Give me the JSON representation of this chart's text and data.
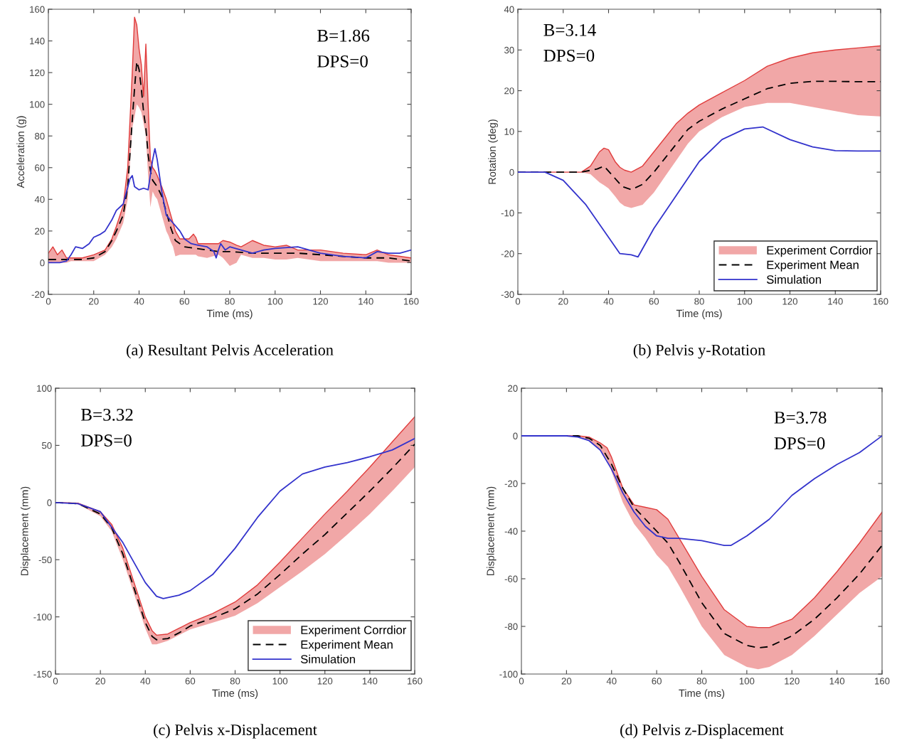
{
  "chart_data": [
    {
      "type": "line",
      "title": "(a) Resultant Pelvis Acceleration",
      "xlabel": "Time (ms)",
      "ylabel": "Acceleration (g)",
      "xlim": [
        0,
        160
      ],
      "xticks": [
        0,
        20,
        40,
        60,
        80,
        100,
        120,
        140,
        160
      ],
      "ylim": [
        -20,
        160
      ],
      "yticks": [
        -20,
        0,
        20,
        40,
        60,
        80,
        100,
        120,
        140,
        160
      ],
      "annotations": [
        "B=1.86",
        "DPS=0"
      ],
      "legend": false,
      "series": [
        {
          "type": "line",
          "color": "#e03c3c",
          "x": [
            0,
            2,
            4,
            6,
            8,
            10,
            15,
            20,
            25,
            28,
            30,
            33,
            35,
            37,
            38,
            39,
            40,
            41,
            42,
            43,
            44,
            45,
            46,
            47,
            48,
            50,
            52,
            53,
            54,
            55,
            56,
            58,
            60,
            62,
            64,
            65,
            66,
            70,
            75,
            77,
            80,
            83,
            85,
            90,
            95,
            100,
            105,
            110,
            120,
            130,
            140,
            145,
            150,
            160
          ],
          "values": [
            6,
            10,
            5,
            8,
            3,
            3,
            3,
            5,
            8,
            15,
            23,
            36,
            60,
            120,
            155,
            150,
            135,
            125,
            105,
            138,
            100,
            65,
            60,
            58,
            55,
            48,
            40,
            35,
            30,
            25,
            20,
            15,
            15,
            15,
            18,
            16,
            12,
            12,
            12,
            14,
            13,
            11,
            10,
            14,
            11,
            10,
            11,
            8,
            8,
            6,
            5,
            8,
            5,
            3
          ],
          "upper": [
            6,
            10,
            5,
            8,
            3,
            3,
            3,
            5,
            8,
            15,
            23,
            36,
            60,
            120,
            155,
            150,
            135,
            125,
            105,
            138,
            100,
            65,
            60,
            58,
            55,
            48,
            40,
            35,
            30,
            25,
            20,
            15,
            15,
            15,
            18,
            16,
            12,
            12,
            12,
            14,
            13,
            11,
            10,
            14,
            11,
            10,
            11,
            8,
            8,
            6,
            5,
            8,
            5,
            3
          ],
          "lower": [
            0,
            0,
            0,
            0,
            0,
            1,
            1,
            1,
            5,
            10,
            15,
            25,
            40,
            85,
            92,
            100,
            98,
            95,
            88,
            80,
            55,
            35,
            45,
            42,
            40,
            30,
            20,
            17,
            13,
            10,
            4,
            5,
            5,
            5,
            5,
            5,
            4,
            3,
            5,
            3,
            -2,
            0,
            5,
            3,
            3,
            2,
            2,
            3,
            1,
            1,
            1,
            1,
            0,
            0
          ]
        },
        {
          "color": "#000000",
          "line_style": "dashed",
          "x": [
            0,
            5,
            10,
            15,
            20,
            25,
            28,
            30,
            33,
            35,
            37,
            38,
            39,
            40,
            41,
            42,
            43,
            44,
            45,
            46,
            48,
            50,
            52,
            54,
            56,
            58,
            60,
            65,
            70,
            75,
            80,
            90,
            100,
            110,
            120,
            130,
            140,
            150,
            160
          ],
          "values": [
            2,
            2,
            2,
            2,
            3,
            7,
            14,
            20,
            30,
            48,
            90,
            110,
            127,
            122,
            110,
            95,
            85,
            68,
            58,
            52,
            48,
            42,
            32,
            22,
            14,
            12,
            10,
            9,
            8,
            7,
            7,
            6,
            6,
            6,
            5,
            4,
            3,
            3,
            1
          ]
        },
        {
          "color": "#3333cc",
          "line_style": "solid",
          "x": [
            0,
            5,
            8,
            10,
            12,
            15,
            18,
            20,
            23,
            25,
            28,
            30,
            33,
            36,
            37,
            38,
            40,
            42,
            44,
            46,
            47,
            48,
            50,
            52,
            55,
            58,
            60,
            63,
            66,
            70,
            73,
            74,
            75,
            76,
            78,
            80,
            85,
            90,
            95,
            100,
            110,
            115,
            120,
            130,
            140,
            145,
            150,
            155,
            160
          ],
          "values": [
            0,
            0,
            1,
            5,
            10,
            9,
            12,
            16,
            18,
            20,
            27,
            33,
            37,
            53,
            55,
            48,
            46,
            47,
            46,
            65,
            72,
            65,
            45,
            30,
            25,
            20,
            15,
            12,
            11,
            10,
            7,
            3,
            8,
            12,
            8,
            10,
            8,
            6,
            8,
            9,
            10,
            8,
            6,
            4,
            3,
            7,
            6,
            6,
            8
          ]
        }
      ]
    },
    {
      "type": "line",
      "title": "(b) Pelvis y-Rotation",
      "xlabel": "Time (ms)",
      "ylabel": "Rotation (deg)",
      "xlim": [
        0,
        160
      ],
      "xticks": [
        0,
        20,
        40,
        60,
        80,
        100,
        120,
        140,
        160
      ],
      "ylim": [
        -30,
        40
      ],
      "yticks": [
        -30,
        -20,
        -10,
        0,
        10,
        20,
        30,
        40
      ],
      "annotations": [
        "B=3.14",
        "DPS=0"
      ],
      "legend": "bottom right",
      "series": [
        {
          "type": "line",
          "name": "Experiment Corrdior",
          "color": "#e03c3c",
          "x": [
            0,
            10,
            20,
            28,
            32,
            36,
            38,
            40,
            43,
            45,
            47,
            50,
            55,
            60,
            65,
            70,
            75,
            80,
            90,
            100,
            110,
            120,
            130,
            140,
            150,
            160
          ],
          "values": [
            0,
            0,
            0,
            0,
            1.5,
            5,
            5.9,
            5.5,
            2.5,
            1.2,
            0.5,
            0,
            1.5,
            5,
            8.5,
            12,
            14.5,
            16.5,
            19.5,
            22.5,
            26,
            28,
            29.3,
            30,
            30.5,
            31
          ],
          "upper": [
            0,
            0,
            0,
            0,
            1.5,
            5,
            5.9,
            5.5,
            2.5,
            1.2,
            0.5,
            0,
            1.5,
            5,
            8.5,
            12,
            14.5,
            16.5,
            19.5,
            22.5,
            26,
            28,
            29.3,
            30,
            30.5,
            31
          ],
          "lower": [
            0,
            0,
            0,
            0,
            -0.5,
            -2.5,
            -3.2,
            -4,
            -6,
            -7.5,
            -8.3,
            -8.8,
            -8,
            -5,
            -1,
            3,
            7,
            10,
            13.5,
            16,
            17,
            17,
            16,
            15,
            14,
            13.7
          ]
        },
        {
          "name": "Experiment Mean",
          "color": "#000000",
          "line_style": "dashed",
          "x": [
            0,
            10,
            20,
            28,
            35,
            38,
            42,
            46,
            50,
            55,
            60,
            65,
            70,
            75,
            80,
            90,
            100,
            110,
            120,
            130,
            140,
            150,
            160
          ],
          "values": [
            0,
            0,
            0,
            0,
            0.8,
            1.5,
            -1,
            -3.5,
            -4.3,
            -3,
            0,
            3.5,
            7,
            10.5,
            12.5,
            15.5,
            18,
            20.5,
            21.8,
            22.3,
            22.3,
            22.2,
            22.2
          ]
        },
        {
          "name": "Simulation",
          "color": "#3333cc",
          "line_style": "solid",
          "x": [
            0,
            12,
            20,
            30,
            40,
            45,
            50,
            53,
            60,
            70,
            80,
            90,
            100,
            108,
            120,
            130,
            140,
            150,
            160
          ],
          "values": [
            0,
            0,
            -2,
            -8,
            -16,
            -20,
            -20.3,
            -20.8,
            -13.8,
            -5.6,
            2.6,
            8,
            10.6,
            11.1,
            8,
            6.2,
            5.3,
            5.2,
            5.2
          ]
        }
      ]
    },
    {
      "type": "line",
      "title": "(c) Pelvis x-Displacement",
      "xlabel": "Time (ms)",
      "ylabel": "Displacement (mm)",
      "xlim": [
        0,
        160
      ],
      "xticks": [
        0,
        20,
        40,
        60,
        80,
        100,
        120,
        140,
        160
      ],
      "ylim": [
        -150,
        100
      ],
      "yticks": [
        -150,
        -100,
        -50,
        0,
        50,
        100
      ],
      "annotations": [
        "B=3.32",
        "DPS=0"
      ],
      "legend": "bottom right",
      "series": [
        {
          "type": "line",
          "name": "Experiment Corrdior",
          "color": "#e03c3c",
          "x": [
            0,
            10,
            20,
            25,
            30,
            35,
            40,
            43,
            45,
            50,
            55,
            60,
            70,
            80,
            90,
            100,
            110,
            120,
            130,
            140,
            150,
            160
          ],
          "values": [
            0,
            -0.5,
            -8,
            -19,
            -40,
            -70,
            -100,
            -112,
            -116,
            -115,
            -110,
            -105,
            -97,
            -87,
            -72,
            -52,
            -31,
            -10,
            10,
            31,
            53,
            75
          ],
          "upper": [
            0,
            -0.5,
            -8,
            -19,
            -40,
            -70,
            -100,
            -112,
            -116,
            -115,
            -110,
            -105,
            -97,
            -87,
            -72,
            -52,
            -31,
            -10,
            10,
            31,
            53,
            75
          ],
          "lower": [
            0,
            -1.5,
            -12,
            -25,
            -50,
            -80,
            -110,
            -124,
            -124,
            -121,
            -116,
            -111,
            -105,
            -99,
            -88,
            -74,
            -60,
            -45,
            -28,
            -10,
            10,
            31
          ]
        },
        {
          "name": "Experiment Mean",
          "color": "#000000",
          "line_style": "dashed",
          "x": [
            0,
            10,
            20,
            25,
            30,
            35,
            40,
            43,
            45,
            50,
            55,
            60,
            70,
            80,
            90,
            100,
            110,
            120,
            130,
            140,
            150,
            160
          ],
          "values": [
            0,
            -1,
            -10,
            -22,
            -45,
            -75,
            -105,
            -117,
            -120,
            -119,
            -114,
            -108,
            -101,
            -93,
            -80,
            -63,
            -45,
            -28,
            -9,
            10,
            30,
            51
          ]
        },
        {
          "name": "Simulation",
          "color": "#3333cc",
          "line_style": "solid",
          "x": [
            0,
            10,
            20,
            30,
            40,
            45,
            48,
            55,
            60,
            70,
            80,
            90,
            100,
            110,
            120,
            130,
            140,
            150,
            160
          ],
          "values": [
            0,
            -1,
            -8,
            -35,
            -70,
            -82,
            -84,
            -81,
            -77,
            -63,
            -40,
            -13,
            10,
            25,
            31,
            35,
            40,
            46,
            56
          ]
        }
      ]
    },
    {
      "type": "line",
      "title": "(d) Pelvis z-Displacement",
      "xlabel": "Time (ms)",
      "ylabel": "Displacement (mm)",
      "xlim": [
        0,
        160
      ],
      "xticks": [
        0,
        20,
        40,
        60,
        80,
        100,
        120,
        140,
        160
      ],
      "ylim": [
        -100,
        20
      ],
      "yticks": [
        -100,
        -80,
        -60,
        -40,
        -20,
        0,
        20
      ],
      "annotations": [
        "B=3.78",
        "DPS=0"
      ],
      "legend": false,
      "series": [
        {
          "type": "line",
          "color": "#e03c3c",
          "x": [
            0,
            10,
            20,
            25,
            30,
            35,
            38,
            40,
            45,
            50,
            55,
            60,
            65,
            70,
            80,
            90,
            100,
            105,
            110,
            120,
            130,
            140,
            150,
            160
          ],
          "values": [
            0,
            0,
            0,
            0,
            -0.5,
            -3,
            -5,
            -9,
            -22,
            -29,
            -30,
            -31,
            -35,
            -43,
            -59,
            -73,
            -80,
            -80.5,
            -80.5,
            -77,
            -68,
            -57,
            -45,
            -32
          ],
          "upper": [
            0,
            0,
            0,
            0,
            -0.5,
            -3,
            -5,
            -9,
            -22,
            -29,
            -30,
            -31,
            -35,
            -43,
            -59,
            -73,
            -80,
            -80.5,
            -80.5,
            -77,
            -68,
            -57,
            -45,
            -32
          ],
          "lower": [
            0,
            0,
            0,
            0,
            -2,
            -6,
            -10,
            -15,
            -28,
            -37,
            -43,
            -50,
            -55,
            -63,
            -80,
            -92,
            -97,
            -98,
            -97,
            -92,
            -84,
            -75,
            -66,
            -59
          ]
        },
        {
          "color": "#000000",
          "line_style": "dashed",
          "x": [
            0,
            10,
            20,
            25,
            30,
            35,
            40,
            45,
            50,
            55,
            60,
            65,
            70,
            80,
            90,
            100,
            105,
            110,
            120,
            130,
            140,
            150,
            160
          ],
          "values": [
            0,
            0,
            0,
            0,
            -1,
            -4,
            -12,
            -22,
            -30,
            -35,
            -40,
            -45,
            -53,
            -70,
            -83,
            -88,
            -89,
            -88.5,
            -84,
            -77,
            -68,
            -58,
            -46
          ]
        },
        {
          "color": "#3333cc",
          "line_style": "solid",
          "x": [
            0,
            10,
            20,
            25,
            30,
            35,
            40,
            45,
            50,
            55,
            60,
            65,
            70,
            80,
            90,
            93,
            100,
            110,
            120,
            130,
            140,
            150,
            160
          ],
          "values": [
            0,
            0,
            0,
            -0.5,
            -2,
            -6,
            -14,
            -24,
            -32,
            -38,
            -42,
            -43,
            -43,
            -44,
            -46,
            -46,
            -42,
            -35,
            -25,
            -18,
            -12,
            -7,
            0
          ]
        }
      ]
    }
  ]
}
